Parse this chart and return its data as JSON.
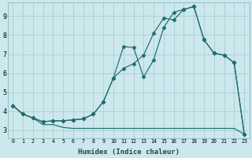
{
  "xlabel": "Humidex (Indice chaleur)",
  "bg_color": "#cce8ec",
  "grid_color": "#aacdd4",
  "line_color": "#1e6e6a",
  "xlim": [
    -0.5,
    23.5
  ],
  "ylim": [
    2.6,
    9.7
  ],
  "xticks": [
    0,
    1,
    2,
    3,
    4,
    5,
    6,
    7,
    8,
    9,
    10,
    11,
    12,
    13,
    14,
    15,
    16,
    17,
    18,
    19,
    20,
    21,
    22,
    23
  ],
  "yticks": [
    3,
    4,
    5,
    6,
    7,
    8,
    9
  ],
  "line1_x": [
    0,
    1,
    2,
    3,
    4,
    5,
    6,
    7,
    8,
    9,
    10,
    11,
    12,
    13,
    14,
    15,
    16,
    17,
    18,
    19,
    20,
    21,
    22,
    23
  ],
  "line1_y": [
    4.3,
    3.85,
    3.65,
    3.45,
    3.5,
    3.5,
    3.55,
    3.6,
    3.85,
    4.5,
    5.75,
    7.4,
    7.35,
    5.8,
    6.7,
    8.4,
    9.2,
    9.35,
    9.5,
    7.75,
    7.05,
    6.95,
    6.55,
    2.8
  ],
  "line2_x": [
    0,
    1,
    2,
    3,
    4,
    5,
    6,
    7,
    8,
    9,
    10,
    11,
    12,
    13,
    14,
    15,
    16,
    17,
    18,
    19,
    20,
    21,
    22,
    23
  ],
  "line2_y": [
    4.3,
    3.85,
    3.65,
    3.45,
    3.5,
    3.5,
    3.55,
    3.6,
    3.85,
    4.5,
    5.75,
    6.25,
    6.5,
    6.95,
    8.1,
    8.9,
    8.8,
    9.35,
    9.5,
    7.75,
    7.05,
    6.95,
    6.55,
    2.8
  ],
  "line3_x": [
    0,
    1,
    2,
    3,
    4,
    5,
    6,
    7,
    8,
    9,
    10,
    11,
    12,
    13,
    14,
    15,
    16,
    17,
    18,
    19,
    20,
    21,
    22,
    23
  ],
  "line3_y": [
    4.3,
    3.85,
    3.65,
    3.3,
    3.3,
    3.15,
    3.1,
    3.1,
    3.1,
    3.1,
    3.1,
    3.1,
    3.1,
    3.1,
    3.1,
    3.1,
    3.1,
    3.1,
    3.1,
    3.1,
    3.1,
    3.1,
    3.1,
    2.8
  ],
  "marker_x1": [
    0,
    1,
    2,
    3,
    4,
    5,
    6,
    7,
    8,
    9,
    10,
    11,
    12,
    13,
    14,
    15,
    16,
    17,
    18,
    19,
    20,
    21,
    22,
    23
  ],
  "marker_x2": [
    0,
    1,
    2,
    9,
    10,
    11,
    12,
    13,
    14,
    15,
    16,
    17,
    18,
    19,
    20,
    21,
    22,
    23
  ]
}
